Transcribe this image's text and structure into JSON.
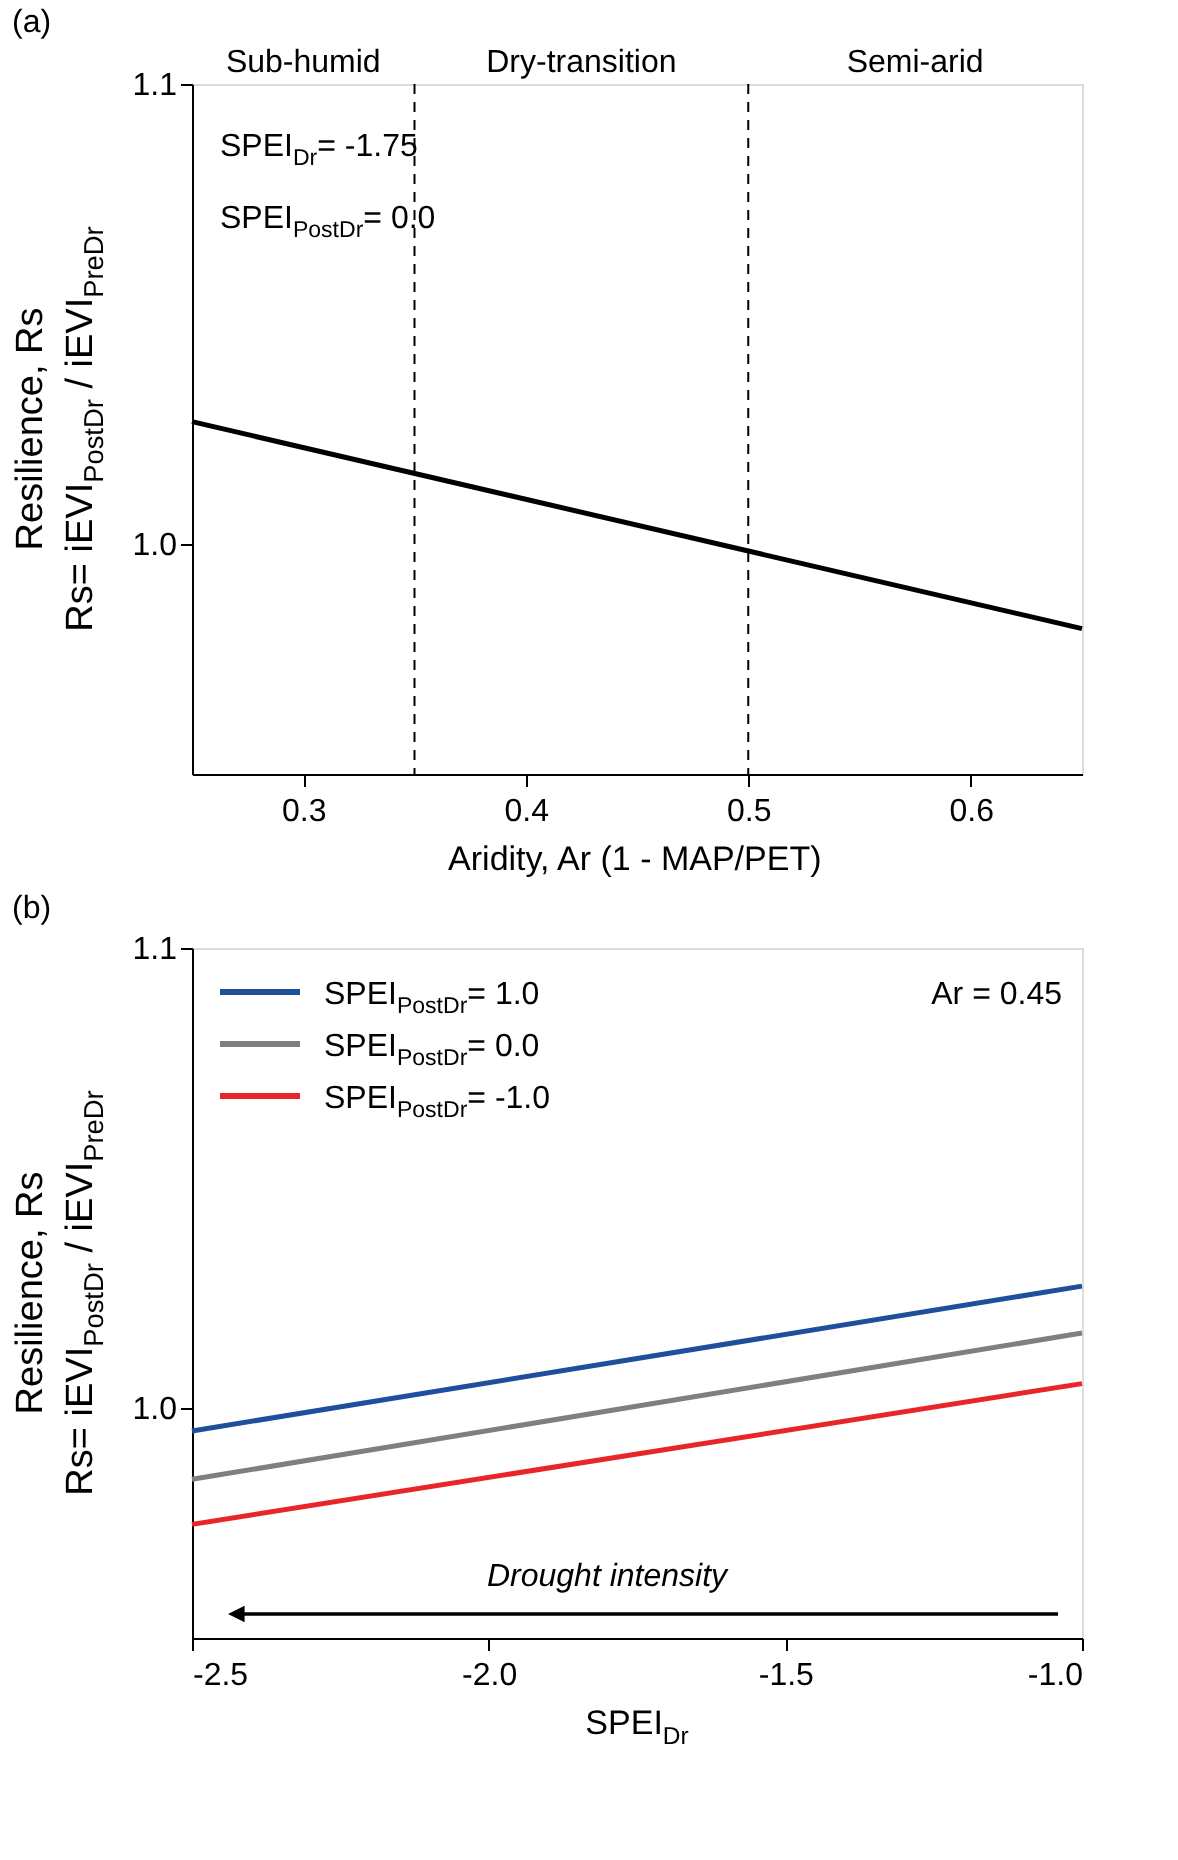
{
  "chart_data": [
    {
      "type": "line",
      "title": "(a)",
      "xlabel": "Aridity, Ar (1 - MAP/PET)",
      "ylabel": "Resilience, Rs\nRs= iEVI$_{PostDr}$ / iEVI$_{PreDr}$",
      "x": [
        0.25,
        0.65
      ],
      "series": [
        {
          "color": "#000000",
          "values": [
            1.0266,
            0.9816
          ]
        }
      ],
      "xlim": [
        0.25,
        0.65
      ],
      "ylim": [
        0.95,
        1.1
      ],
      "xticks": [
        0.3,
        0.4,
        0.5,
        0.6
      ],
      "yticks": [
        {
          "value": 1.0,
          "label": "1.0"
        },
        1.1
      ],
      "ref_lines": [
        {
          "axis": "x",
          "value": 0.35,
          "line_style": "dashed"
        },
        {
          "axis": "x",
          "value": 0.5,
          "line_style": "dashed"
        }
      ],
      "annotations": [
        "Sub-humid",
        "Dry-transition",
        "Semi-arid",
        "SPEI$_{Dr}$= -1.75",
        "SPEI$_{PostDr}$= 0.0"
      ],
      "grid": false,
      "legend": false
    },
    {
      "type": "line",
      "title": "(b)",
      "xlabel": "SPEI$_{Dr}$",
      "ylabel": "Resilience, Rs\nRs= iEVI$_{PostDr}$ / iEVI$_{PreDr}$",
      "x": [
        -2.5,
        -1.0
      ],
      "series": [
        {
          "name": "SPEI$_{PostDr}$=  1.0",
          "color": "#1f4e9c",
          "values": [
            0.995,
            1.0265
          ]
        },
        {
          "name": "SPEI$_{PostDr}$=  0.0",
          "color": "#7f7f7f",
          "values": [
            0.9845,
            1.0163
          ]
        },
        {
          "name": "SPEI$_{PostDr}$= -1.0",
          "color": "#e8262a",
          "values": [
            0.9747,
            1.0053
          ]
        }
      ],
      "xlim": [
        -2.5,
        -1.0
      ],
      "ylim": [
        0.95,
        1.1
      ],
      "xticks": [
        -2.5,
        {
          "value": -2.0,
          "label": "-2.0"
        },
        -1.5,
        {
          "value": -1.0,
          "label": "-1.0"
        }
      ],
      "yticks": [
        {
          "value": 1.0,
          "label": "1.0"
        },
        1.1
      ],
      "annotations": [
        "Ar = 0.45",
        "Drought intensity"
      ],
      "grid": false,
      "legend": "top left"
    }
  ]
}
